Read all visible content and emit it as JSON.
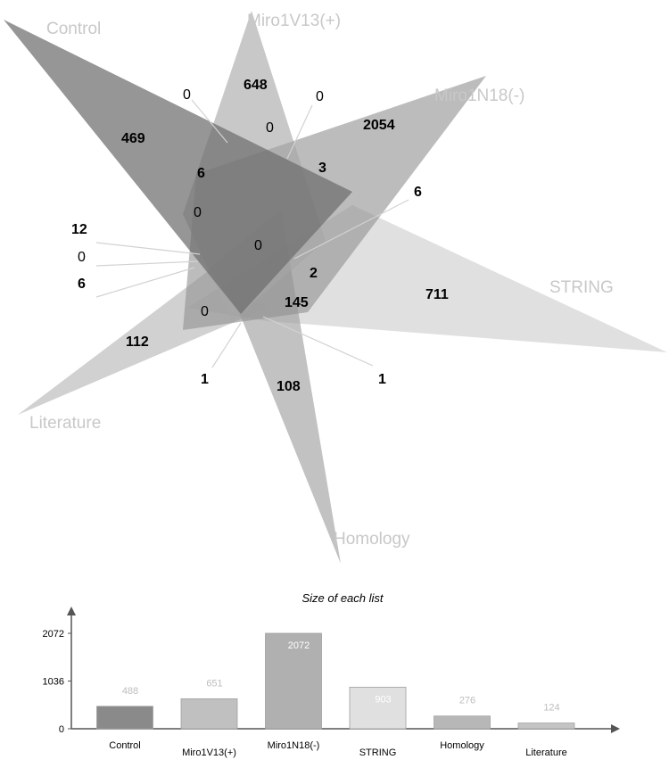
{
  "venn": {
    "sets": [
      {
        "key": "control",
        "label": "Control",
        "color": "#6e6e6e",
        "opacity": 0.72
      },
      {
        "key": "miro1v13",
        "label": "Miro1V13(+)",
        "color": "#a6a6a6",
        "opacity": 0.62
      },
      {
        "key": "miro1n18",
        "label": "Miro1N18(-)",
        "color": "#8f8f8f",
        "opacity": 0.6
      },
      {
        "key": "string",
        "label": "STRING",
        "color": "#cfcfcf",
        "opacity": 0.65
      },
      {
        "key": "homology",
        "label": "Homology",
        "color": "#9c9c9c",
        "opacity": 0.62
      },
      {
        "key": "literature",
        "label": "Literature",
        "color": "#b5b5b5",
        "opacity": 0.62
      }
    ],
    "counts": {
      "control_only": "469",
      "miro1v13_only": "648",
      "miro1n18_only": "2054",
      "string_only": "711",
      "homology_only": "108",
      "literature_only": "112",
      "c_v13": "0",
      "v13_n18": "0",
      "v13_n18_b": "0",
      "c_v13_n18": "6",
      "v13_n18_s": "3",
      "n18_s": "6",
      "left_0a": "0",
      "center": "0",
      "left_12": "12",
      "left_0b": "0",
      "left_6": "6",
      "n18_h": "2",
      "s_h": "145",
      "lower_0": "0",
      "lower_1a": "1",
      "lower_1b": "1"
    }
  },
  "chart_data": {
    "type": "bar",
    "title": "Size of each list",
    "categories": [
      "Control",
      "Miro1V13(+)",
      "Miro1N18(-)",
      "STRING",
      "Homology",
      "Literature"
    ],
    "values": [
      488,
      651,
      2072,
      903,
      276,
      124
    ],
    "value_labels": [
      "488",
      "651",
      "2072",
      "903",
      "276",
      "124"
    ],
    "yticks": [
      0,
      1036,
      2072
    ],
    "ytick_labels": [
      "0",
      "1036",
      "2072"
    ],
    "ylim": [
      0,
      2072
    ],
    "colors": [
      "#8a8a8a",
      "#c0c0c0",
      "#b0b0b0",
      "#e0e0e0",
      "#b7b7b7",
      "#c4c4c4"
    ],
    "label_colors": [
      "#bdbdbd",
      "#bdbdbd",
      "#ffffff",
      "#ffffff",
      "#bdbdbd",
      "#bdbdbd"
    ]
  }
}
